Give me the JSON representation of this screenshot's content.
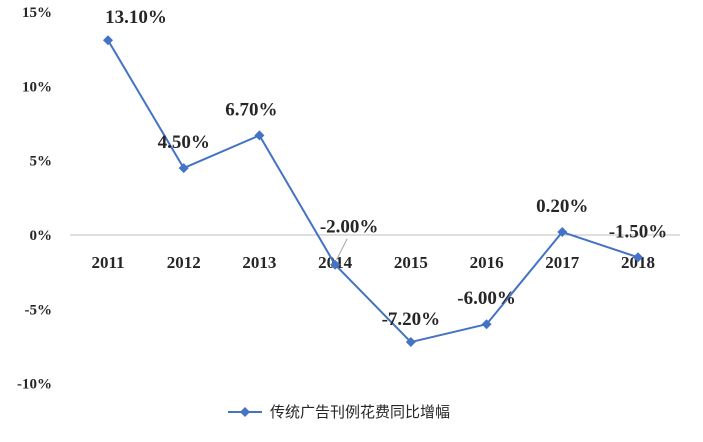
{
  "chart_data": {
    "type": "line",
    "categories": [
      "2011",
      "2012",
      "2013",
      "2014",
      "2015",
      "2016",
      "2017",
      "2018"
    ],
    "series": [
      {
        "name": "传统广告刊例花费同比增幅",
        "values": [
          13.1,
          4.5,
          6.7,
          -2.0,
          -7.2,
          -6.0,
          0.2,
          -1.5
        ],
        "data_labels": [
          "13.10%",
          "4.50%",
          "6.70%",
          "-2.00%",
          "-7.20%",
          "-6.00%",
          "0.20%",
          "-1.50%"
        ]
      }
    ],
    "ylim": [
      -10,
      15
    ],
    "yticks": [
      {
        "value": 15,
        "label": "15%"
      },
      {
        "value": 10,
        "label": "10%"
      },
      {
        "value": 5,
        "label": "5%"
      },
      {
        "value": 0,
        "label": "0%"
      },
      {
        "value": -5,
        "label": "-5%"
      },
      {
        "value": -10,
        "label": "-10%"
      }
    ],
    "grid": false,
    "legend_position": "bottom",
    "colors": {
      "series": "#4472C4",
      "axis": "#BFBFBF",
      "text": "#262626"
    }
  }
}
